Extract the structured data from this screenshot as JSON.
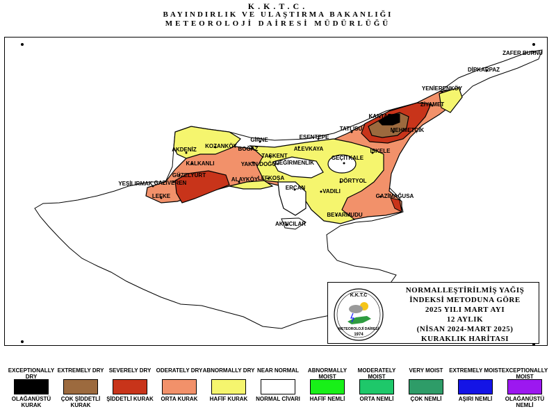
{
  "header": {
    "line1": "K.K.T.C.",
    "line2": "BAYINDIRLIK VE ULAŞTIRMA BAKANLIĞI",
    "line3": "METEOROLOJİ DAİRESİ MÜDÜRLÜĞÜ"
  },
  "places": [
    "ZAFER BURNU",
    "DİPKARPAZ",
    "YENİERENKÖY",
    "ZİYAMET",
    "KANTARA",
    "TATLISU",
    "MEHMETÇİK",
    "ESENTEPE",
    "KOZANKÖY",
    "GİRNE",
    "BOĞAZ",
    "AKDENİZ",
    "ALEVKAYA",
    "TAŞKENT",
    "DEĞİRMENLİK",
    "İSKELE",
    "GEÇİTKALE",
    "KALKANLI",
    "YAKIN DOĞU",
    "GÜZELYURT",
    "GAZİVEREN",
    "ALAYKÖY",
    "LEFKOŞA",
    "ERCAN",
    "YEŞİLIRMAK",
    "LEFKE",
    "DÖRTYOL",
    "VADILI",
    "GAZİMAĞUSA",
    "BEYARMUDU",
    "AKINCILAR"
  ],
  "info": {
    "logo_top": "K.K.T.C",
    "logo_bottom1": "METEOROLOJİ DAİRESİ",
    "logo_year": "1974",
    "line1": "NORMALLEŞTİRİLMİŞ YAĞIŞ",
    "line2": "İNDEKSİ METODUNA GÖRE",
    "line3": "2025 YILI MART AYI",
    "line4": "12 AYLIK",
    "line5": "(NİSAN 2024-MART 2025)",
    "line6": "KURAKLIK HARİTASI"
  },
  "legend": [
    {
      "en": "EXCEPTIONALLY DRY",
      "tr": "OLAĞANÜSTÜ KURAK",
      "color": "#000000"
    },
    {
      "en": "EXTREMELY DRY",
      "tr": "ÇOK ŞİDDETLİ KURAK",
      "color": "#9c6a3e"
    },
    {
      "en": "SEVERELY DRY",
      "tr": "ŞİDDETLİ KURAK",
      "color": "#c8341a"
    },
    {
      "en": "ODERATELY DRY",
      "tr": "ORTA KURAK",
      "color": "#f2916a"
    },
    {
      "en": "ABNORMALLY DRY",
      "tr": "HAFİF KURAK",
      "color": "#f5f56e"
    },
    {
      "en": "NEAR NORMAL",
      "tr": "NORMAL CİVARI",
      "color": "#ffffff"
    },
    {
      "en": "ABNORMALLY MOIST",
      "tr": "HAFİF NEMLİ",
      "color": "#18f018"
    },
    {
      "en": "MODERATELY MOIST",
      "tr": "ORTA NEMLİ",
      "color": "#1ec86a"
    },
    {
      "en": "VERY MOIST",
      "tr": "ÇOK NEMLİ",
      "color": "#2e9c68"
    },
    {
      "en": "EXTREMELY MOIST",
      "tr": "AŞIRI NEMLİ",
      "color": "#1414e6"
    },
    {
      "en": "EXCEPTIONALLY MOIST",
      "tr": "OLAĞANÜSTÜ NEMLİ",
      "color": "#9c18f0"
    }
  ]
}
